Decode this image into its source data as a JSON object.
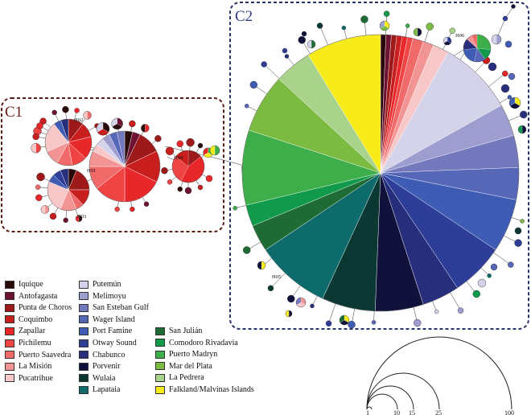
{
  "clusters": {
    "c1": {
      "label": "C1",
      "border_color": "#5a1c14",
      "label_color": "#6b1d14"
    },
    "c2": {
      "label": "C2",
      "border_color": "#28336b",
      "label_color": "#2f3c7e"
    }
  },
  "haplotypes": [
    "H01",
    "H02",
    "H03",
    "H04",
    "H05",
    "H06"
  ],
  "localities": [
    {
      "name": "Iquique",
      "color": "#2a0a08"
    },
    {
      "name": "Antofagasta",
      "color": "#6e1232"
    },
    {
      "name": "Punta de Choros",
      "color": "#9e1a1a"
    },
    {
      "name": "Coquimbo",
      "color": "#c81e1e"
    },
    {
      "name": "Zapallar",
      "color": "#e8272b"
    },
    {
      "name": "Pichilemu",
      "color": "#ee4444"
    },
    {
      "name": "Puerto Saavedra",
      "color": "#f06a6a"
    },
    {
      "name": "La Misión",
      "color": "#f39494"
    },
    {
      "name": "Pucatrihue",
      "color": "#f8c8c8"
    },
    {
      "name": "Putemún",
      "color": "#d4d3ea"
    },
    {
      "name": "Melimoyu",
      "color": "#9d9dd0"
    },
    {
      "name": "San Esteban Gulf",
      "color": "#7479bd"
    },
    {
      "name": "Wager Island",
      "color": "#5767b8"
    },
    {
      "name": "Port Famine",
      "color": "#3e5cb3"
    },
    {
      "name": "Otway Sound",
      "color": "#2d3d98"
    },
    {
      "name": "Chabunco",
      "color": "#272e7c"
    },
    {
      "name": "Porvenir",
      "color": "#11123c"
    },
    {
      "name": "Wulaia",
      "color": "#0b3833"
    },
    {
      "name": "Lapataia",
      "color": "#0e6b6b"
    },
    {
      "name": "San Julián",
      "color": "#1e6b35"
    },
    {
      "name": "Comodoro Rivadavia",
      "color": "#119a4b"
    },
    {
      "name": "Puerto Madryn",
      "color": "#3dae4a"
    },
    {
      "name": "Mar del Plata",
      "color": "#7cbb42"
    },
    {
      "name": "La Pedrera",
      "color": "#a9d28a"
    },
    {
      "name": "Falkland/Malvinas Islands",
      "color": "#f7ec1a"
    }
  ],
  "scale": {
    "values": [
      "1",
      "10",
      "15",
      "25",
      "100"
    ]
  }
}
